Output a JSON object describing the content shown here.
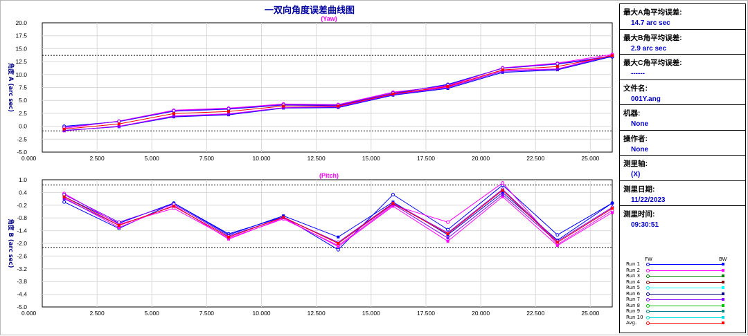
{
  "window_title": "一双向角度误差曲线图",
  "chart_data": [
    {
      "type": "line",
      "title": "(Yaw)",
      "ylabel": "角度 A (arc sec)",
      "xlim": [
        0,
        26
      ],
      "ylim": [
        -5,
        20
      ],
      "xticks": [
        0,
        2.5,
        5,
        7.5,
        10,
        12.5,
        15,
        17.5,
        20,
        22.5,
        25
      ],
      "xtick_labels": [
        "0.000",
        "2.500",
        "5.000",
        "7.500",
        "10.000",
        "12.500",
        "15.000",
        "17.500",
        "20.000",
        "22.500",
        "25.000"
      ],
      "yticks": [
        -5,
        -2.5,
        0,
        2.5,
        5,
        7.5,
        10,
        12.5,
        15,
        17.5,
        20
      ],
      "ytick_labels": [
        "-5.0",
        "-2.5",
        "0.0",
        "2.5",
        "5.0",
        "7.5",
        "10.0",
        "12.5",
        "15.0",
        "17.5",
        "20.0"
      ],
      "limit_lines": [
        13.7,
        -0.9
      ],
      "x": [
        1,
        3.5,
        6,
        8.5,
        11,
        13.5,
        16,
        18.5,
        21,
        23.5,
        26
      ],
      "series": [
        {
          "name": "Run 1 FW",
          "color": "#0000ff",
          "marker": "open",
          "values": [
            0.0,
            0.9,
            2.9,
            3.3,
            4.1,
            4.0,
            6.3,
            8.1,
            11.2,
            12.0,
            13.4
          ]
        },
        {
          "name": "Run 1 BW",
          "color": "#0000ff",
          "marker": "filled",
          "values": [
            -0.8,
            -0.1,
            1.8,
            2.2,
            3.5,
            3.6,
            6.0,
            7.3,
            10.4,
            10.9,
            13.5
          ]
        },
        {
          "name": "Run 2 FW",
          "color": "#ff00ff",
          "marker": "open",
          "values": [
            -0.4,
            1.0,
            3.1,
            3.5,
            4.3,
            4.2,
            6.6,
            7.8,
            11.3,
            12.2,
            13.9
          ]
        },
        {
          "name": "Run 2 BW",
          "color": "#ff00ff",
          "marker": "filled",
          "values": [
            -0.9,
            0.0,
            2.0,
            2.4,
            3.6,
            3.8,
            6.2,
            7.6,
            10.8,
            11.1,
            13.8
          ]
        },
        {
          "name": "Run 7 FW",
          "color": "#8000ff",
          "marker": "open",
          "values": [
            -0.2,
            0.95,
            3.0,
            3.4,
            4.2,
            4.1,
            6.45,
            7.95,
            11.25,
            12.1,
            13.6
          ]
        },
        {
          "name": "Run 7 BW",
          "color": "#8000ff",
          "marker": "filled",
          "values": [
            -0.85,
            -0.05,
            1.9,
            2.3,
            3.55,
            3.7,
            6.1,
            7.45,
            10.6,
            11.0,
            13.65
          ]
        },
        {
          "name": "Avg.",
          "color": "#ff0000",
          "marker": "filled",
          "values": [
            -0.55,
            0.45,
            2.45,
            2.85,
            3.9,
            3.9,
            6.25,
            7.7,
            10.9,
            11.55,
            13.65
          ]
        }
      ]
    },
    {
      "type": "line",
      "title": "(Pitch)",
      "ylabel": "角度 B (arc sec)",
      "xlim": [
        0,
        26
      ],
      "ylim": [
        -5,
        1
      ],
      "xticks": [
        0,
        2.5,
        5,
        7.5,
        10,
        12.5,
        15,
        17.5,
        20,
        22.5,
        25
      ],
      "xtick_labels": [
        "0.000",
        "2.500",
        "5.000",
        "7.500",
        "10.000",
        "12.500",
        "15.000",
        "17.500",
        "20.000",
        "22.500",
        "25.000"
      ],
      "yticks": [
        1.0,
        0.4,
        -0.2,
        -0.8,
        -1.4,
        -2.0,
        -2.6,
        -3.2,
        -3.8,
        -4.4,
        -5.0
      ],
      "ytick_labels": [
        "1.0",
        "0.4",
        "-0.2",
        "-0.8",
        "-1.4",
        "-2.0",
        "-2.6",
        "-3.2",
        "-3.8",
        "-4.4",
        "-5.0"
      ],
      "limit_lines": [
        0.75,
        -2.2
      ],
      "x": [
        1,
        3.5,
        6,
        8.5,
        11,
        13.5,
        16,
        18.5,
        21,
        23.5,
        26
      ],
      "series": [
        {
          "name": "Run 1 FW",
          "color": "#0000ff",
          "marker": "open",
          "values": [
            -0.05,
            -1.3,
            -0.1,
            -1.55,
            -0.75,
            -2.3,
            0.3,
            -1.35,
            0.75,
            -1.6,
            -0.1
          ]
        },
        {
          "name": "Run 1 BW",
          "color": "#0000ff",
          "marker": "filled",
          "values": [
            0.2,
            -1.05,
            -0.1,
            -1.6,
            -0.7,
            -1.7,
            -0.05,
            -1.6,
            0.4,
            -1.85,
            -0.1
          ]
        },
        {
          "name": "Run 2 FW",
          "color": "#ff00ff",
          "marker": "open",
          "values": [
            0.35,
            -1.1,
            -0.35,
            -1.75,
            -0.85,
            -2.1,
            -0.2,
            -1.0,
            0.85,
            -2.05,
            -0.45
          ]
        },
        {
          "name": "Run 2 BW",
          "color": "#ff00ff",
          "marker": "filled",
          "values": [
            0.15,
            -1.25,
            -0.2,
            -1.8,
            -0.8,
            -2.15,
            -0.25,
            -1.9,
            0.2,
            -2.1,
            -0.55
          ]
        },
        {
          "name": "Run 7 FW",
          "color": "#8000ff",
          "marker": "open",
          "values": [
            0.3,
            -1.0,
            -0.15,
            -1.65,
            -0.78,
            -1.95,
            -0.1,
            -1.5,
            0.55,
            -1.9,
            -0.3
          ]
        },
        {
          "name": "Run 7 BW",
          "color": "#8000ff",
          "marker": "filled",
          "values": [
            0.1,
            -1.15,
            -0.25,
            -1.7,
            -0.76,
            -2.0,
            -0.15,
            -1.75,
            0.3,
            -1.95,
            -0.35
          ]
        },
        {
          "name": "Avg.",
          "color": "#ff0000",
          "marker": "filled",
          "values": [
            0.2,
            -1.15,
            -0.25,
            -1.7,
            -0.77,
            -2.0,
            -0.12,
            -1.55,
            0.5,
            -1.95,
            -0.35
          ]
        }
      ]
    }
  ],
  "info_panel": [
    {
      "label": "最大A角平均误差:",
      "value": "14.7 arc sec"
    },
    {
      "label": "最大B角平均误差:",
      "value": "2.9 arc sec"
    },
    {
      "label": "最大C角平均误差:",
      "value": "------"
    },
    {
      "label": "文件名:",
      "value": "001Y.ang"
    },
    {
      "label": "机器:",
      "value": "None"
    },
    {
      "label": "操作者:",
      "value": "None"
    },
    {
      "label": "测里轴:",
      "value": "(X)"
    },
    {
      "label": "测里日期:",
      "value": "11/22/2023"
    },
    {
      "label": "测里时间:",
      "value": "09:30:51"
    }
  ],
  "legend": {
    "fw_label": "FW",
    "bw_label": "BW",
    "items": [
      {
        "label": "Run 1",
        "color": "#0000ff"
      },
      {
        "label": "Run 2",
        "color": "#ff00ff"
      },
      {
        "label": "Run 3",
        "color": "#008000"
      },
      {
        "label": "Run 4",
        "color": "#800000"
      },
      {
        "label": "Run 5",
        "color": "#00ffff"
      },
      {
        "label": "Run 6",
        "color": "#000080"
      },
      {
        "label": "Run 7",
        "color": "#8000ff"
      },
      {
        "label": "Run 8",
        "color": "#00c000"
      },
      {
        "label": "Run 9",
        "color": "#008080"
      },
      {
        "label": "Run 10",
        "color": "#00e0e0"
      },
      {
        "label": "Avg.",
        "color": "#ff0000"
      }
    ]
  }
}
